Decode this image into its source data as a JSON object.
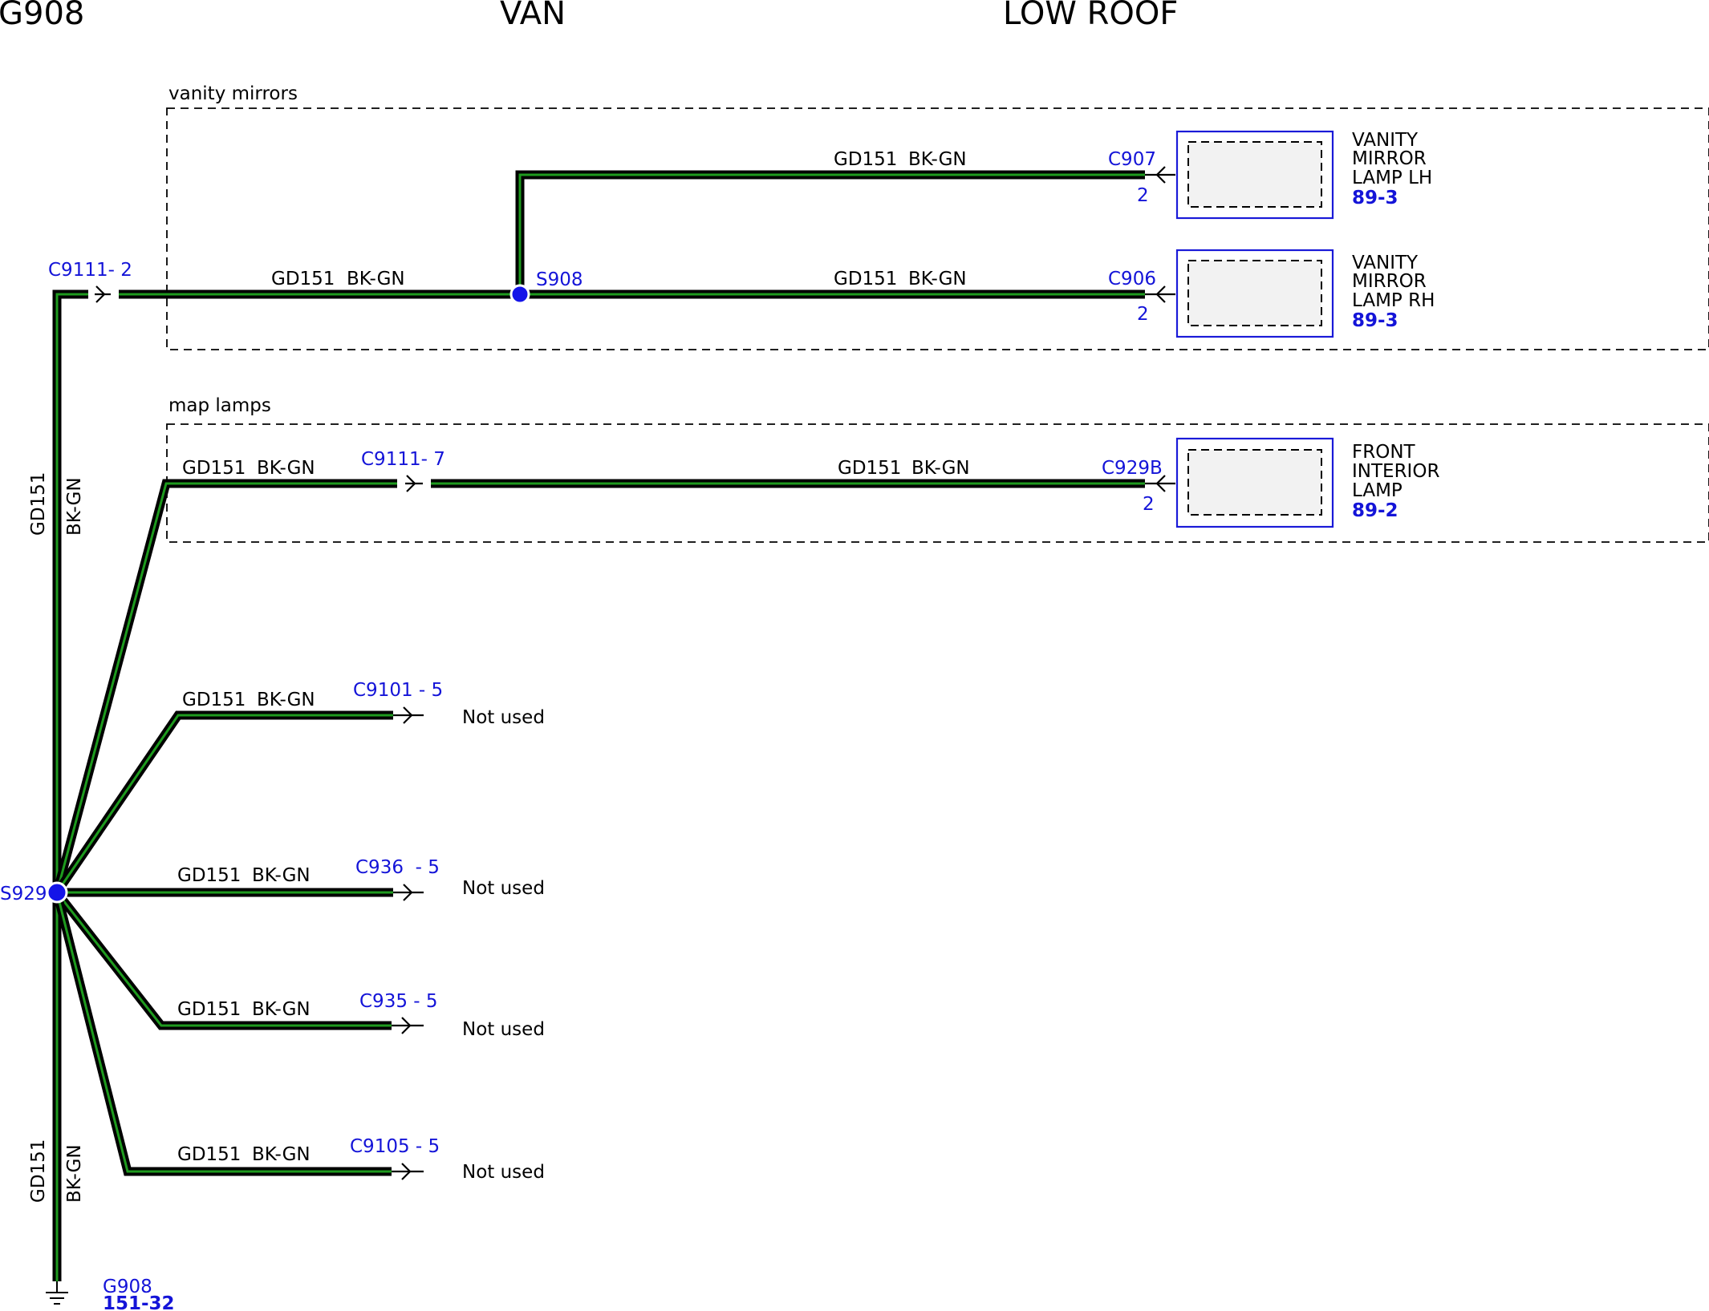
{
  "header": {
    "ground": "G908",
    "body": "VAN",
    "roof": "LOW ROOF"
  },
  "groups": {
    "vanity": "vanity mirrors",
    "map": "map lamps"
  },
  "wire": {
    "circuit": "GD151",
    "color": "BK-GN"
  },
  "connectors": {
    "c9111_2": "C9111- 2",
    "c9111_7": "C9111- 7",
    "c907": "C907",
    "c907_pin": "2",
    "c906": "C906",
    "c906_pin": "2",
    "c929b": "C929B",
    "c929b_pin": "2",
    "c9101": "C9101 - 5",
    "c936": "C936  - 5",
    "c935": "C935 - 5",
    "c9105": "C9105 - 5"
  },
  "splices": {
    "s908": "S908",
    "s929": "S929"
  },
  "components": {
    "lh": {
      "l1": "VANITY",
      "l2": "MIRROR",
      "l3": "LAMP LH",
      "ref": "89-3"
    },
    "rh": {
      "l1": "VANITY",
      "l2": "MIRROR",
      "l3": "LAMP RH",
      "ref": "89-3"
    },
    "fil": {
      "l1": "FRONT",
      "l2": "INTERIOR",
      "l3": "LAMP",
      "ref": "89-2"
    }
  },
  "not_used": "Not used",
  "ground": {
    "name": "G908",
    "ref": "151-32"
  },
  "colors": {
    "wire_outer": "#000000",
    "wire_inner": "#1e9a1e",
    "link_blue": "#1414d8"
  }
}
